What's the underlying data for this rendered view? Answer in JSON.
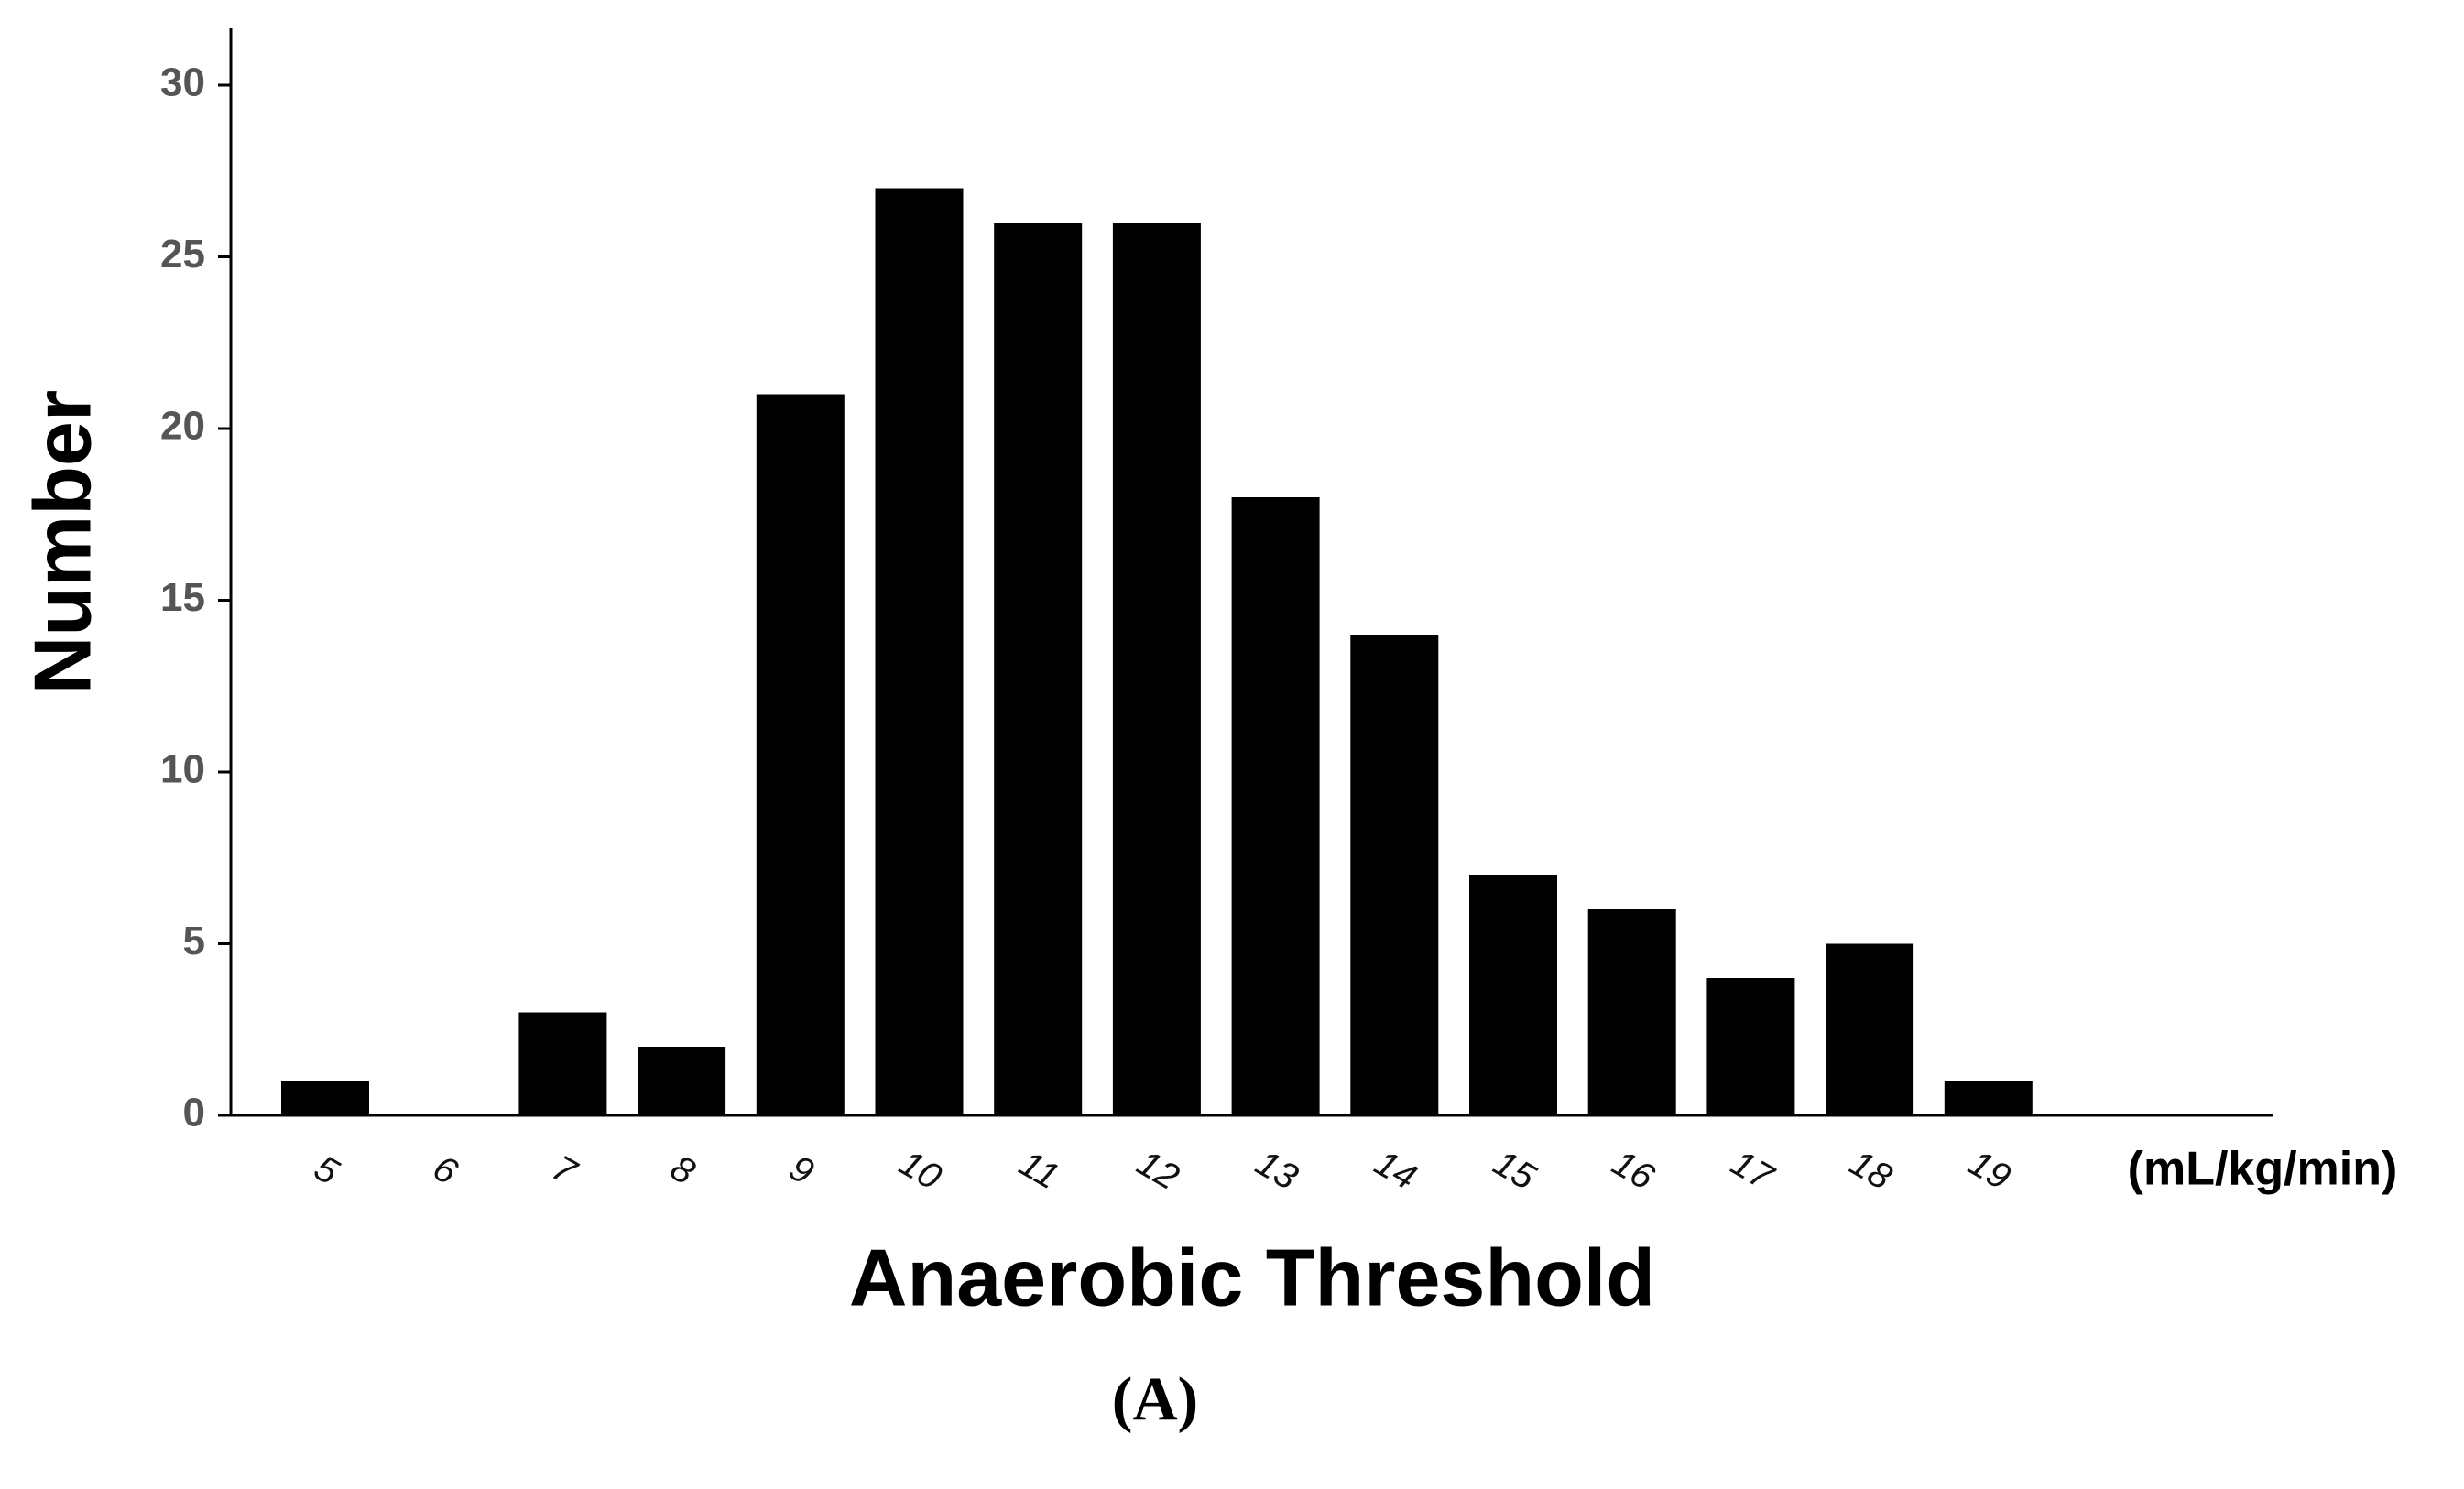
{
  "chart_data": {
    "type": "bar",
    "categories": [
      "5",
      "6",
      "7",
      "8",
      "9",
      "10",
      "11",
      "12",
      "13",
      "14",
      "15",
      "16",
      "17",
      "18",
      "19"
    ],
    "values": [
      1,
      0,
      3,
      2,
      21,
      27,
      26,
      26,
      18,
      14,
      7,
      6,
      4,
      5,
      1
    ],
    "color": "#000000",
    "ylim": [
      0,
      30
    ],
    "yticks": [
      0,
      5,
      10,
      15,
      20,
      25,
      30
    ],
    "x_label": "Anaerobic Threshold",
    "x_unit": "(mL/kg/min)",
    "y_label": "Number",
    "caption": "(A)"
  }
}
